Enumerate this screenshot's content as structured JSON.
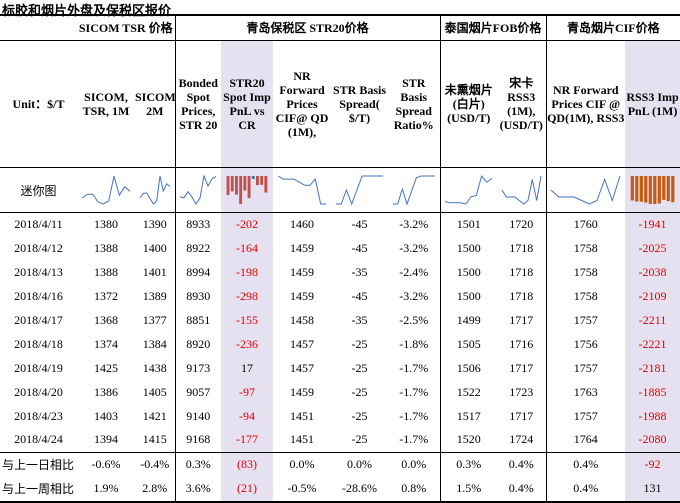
{
  "title": "标胶和烟片外盘及保税区报价",
  "groups": {
    "sicom": "SICOM TSR 价格",
    "qingdao": "青岛保税区 STR20价格",
    "thai": "泰国烟片FOB价格",
    "rss3": "青岛烟片CIF价格"
  },
  "columns": {
    "unit": "Unit：$/T",
    "c1": "SICOM, TSR, 1M",
    "c2": "SICOM,TSR, 2M",
    "c3": "Bonded Spot Prices, STR 20",
    "c4": "STR20 Spot Imp PnL vs CR",
    "c5": "NR Forward Prices CIF@ QD (1M),",
    "c6": "STR Basis Spread( $/T)",
    "c7": "STR Basis Spread Ratio%",
    "c8": "未熏烟片 (白片) (USD/T)",
    "c9": "宋卡 RSS3 (1M), (USD/T)",
    "c10": "NR Forward Prices CIF @ QD(1M), RSS3",
    "c11": "RSS3 Imp PnL (1M)"
  },
  "mini_label": "迷你图",
  "rows": [
    {
      "date": "2018/4/11",
      "c1": "1380",
      "c2": "1390",
      "c3": "8933",
      "c4": "-202",
      "c5": "1460",
      "c6": "-45",
      "c7": "-3.2%",
      "c8": "1501",
      "c9": "1720",
      "c10": "1760",
      "c11": "-1941"
    },
    {
      "date": "2018/4/12",
      "c1": "1388",
      "c2": "1400",
      "c3": "8922",
      "c4": "-164",
      "c5": "1459",
      "c6": "-45",
      "c7": "-3.2%",
      "c8": "1500",
      "c9": "1718",
      "c10": "1758",
      "c11": "-2025"
    },
    {
      "date": "2018/4/13",
      "c1": "1388",
      "c2": "1401",
      "c3": "8994",
      "c4": "-198",
      "c5": "1459",
      "c6": "-35",
      "c7": "-2.4%",
      "c8": "1500",
      "c9": "1718",
      "c10": "1758",
      "c11": "-2038"
    },
    {
      "date": "2018/4/16",
      "c1": "1372",
      "c2": "1389",
      "c3": "8930",
      "c4": "-298",
      "c5": "1459",
      "c6": "-45",
      "c7": "-3.2%",
      "c8": "1500",
      "c9": "1718",
      "c10": "1758",
      "c11": "-2109"
    },
    {
      "date": "2018/4/17",
      "c1": "1368",
      "c2": "1377",
      "c3": "8851",
      "c4": "-155",
      "c5": "1458",
      "c6": "-35",
      "c7": "-2.5%",
      "c8": "1499",
      "c9": "1717",
      "c10": "1757",
      "c11": "-2211"
    },
    {
      "date": "2018/4/18",
      "c1": "1374",
      "c2": "1384",
      "c3": "8920",
      "c4": "-236",
      "c5": "1457",
      "c6": "-25",
      "c7": "-1.8%",
      "c8": "1505",
      "c9": "1716",
      "c10": "1756",
      "c11": "-2221"
    },
    {
      "date": "2018/4/19",
      "c1": "1425",
      "c2": "1438",
      "c3": "9173",
      "c4": "17",
      "c5": "1457",
      "c6": "-25",
      "c7": "-1.7%",
      "c8": "1506",
      "c9": "1717",
      "c10": "1757",
      "c11": "-2181"
    },
    {
      "date": "2018/4/20",
      "c1": "1386",
      "c2": "1405",
      "c3": "9057",
      "c4": "-97",
      "c5": "1459",
      "c6": "-25",
      "c7": "-1.7%",
      "c8": "1522",
      "c9": "1723",
      "c10": "1763",
      "c11": "-1885"
    },
    {
      "date": "2018/4/23",
      "c1": "1403",
      "c2": "1421",
      "c3": "9140",
      "c4": "-94",
      "c5": "1451",
      "c6": "-25",
      "c7": "-1.7%",
      "c8": "1517",
      "c9": "1717",
      "c10": "1757",
      "c11": "-1988"
    },
    {
      "date": "2018/4/24",
      "c1": "1394",
      "c2": "1415",
      "c3": "9168",
      "c4": "-177",
      "c5": "1451",
      "c6": "-25",
      "c7": "-1.7%",
      "c8": "1520",
      "c9": "1724",
      "c10": "1764",
      "c11": "-2080"
    }
  ],
  "changes": [
    {
      "label": "与上一日相比",
      "c1": "-0.6%",
      "c2": "-0.4%",
      "c3": "0.3%",
      "c4": "(83)",
      "c5": "0.0%",
      "c6": "0.0%",
      "c7": "0.0%",
      "c8": "0.3%",
      "c9": "0.4%",
      "c10": "0.4%",
      "c11": "-92"
    },
    {
      "label": "与上一周相比",
      "c1": "1.9%",
      "c2": "2.8%",
      "c3": "3.6%",
      "c4": "(21)",
      "c5": "-0.5%",
      "c6": "-28.6%",
      "c7": "0.8%",
      "c8": "1.5%",
      "c9": "0.4%",
      "c10": "0.4%",
      "c11": "131"
    }
  ],
  "colors": {
    "shade": "#e6e1f0",
    "negative": "#e00000",
    "bar": "#c0504d",
    "bar_high": "#2e75b6",
    "rss3_bar": "#c55a11",
    "sparkline": "#4472c4"
  }
}
